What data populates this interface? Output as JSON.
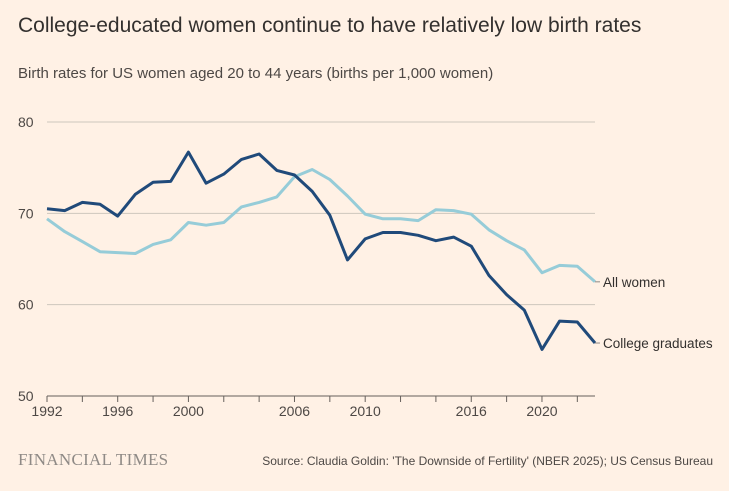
{
  "title": "College-educated women continue to have relatively low birth rates",
  "subtitle": "Birth rates for US women aged 20 to 44 years (births per 1,000 women)",
  "brand": "FINANCIAL TIMES",
  "source": "Source: Claudia Goldin: 'The Downside of Fertility' (NBER 2025); US Census Bureau",
  "chart_data": {
    "type": "line",
    "title": "College-educated women continue to have relatively low birth rates",
    "subtitle": "Birth rates for US women aged 20 to 44 years (births per 1,000 women)",
    "xlim": [
      1992,
      2023
    ],
    "ylim": [
      50,
      80
    ],
    "yticks": [
      50,
      60,
      70,
      80
    ],
    "xticks": [
      1992,
      1996,
      2000,
      2006,
      2010,
      2016,
      2020
    ],
    "grid": true,
    "x": [
      1992,
      1993,
      1994,
      1995,
      1996,
      1997,
      1998,
      1999,
      2000,
      2001,
      2002,
      2003,
      2004,
      2005,
      2006,
      2007,
      2008,
      2009,
      2010,
      2011,
      2012,
      2013,
      2014,
      2015,
      2016,
      2017,
      2018,
      2019,
      2020,
      2021,
      2022,
      2023
    ],
    "series": [
      {
        "name": "All women",
        "color": "#96CCD8",
        "values": [
          69.4,
          68.0,
          66.9,
          65.8,
          65.7,
          65.6,
          66.6,
          67.1,
          69.0,
          68.7,
          69.0,
          70.7,
          71.2,
          71.8,
          74.0,
          74.8,
          73.7,
          71.9,
          69.9,
          69.4,
          69.4,
          69.2,
          70.4,
          70.3,
          69.9,
          68.2,
          67.0,
          66.0,
          63.5,
          64.3,
          64.2,
          62.5
        ]
      },
      {
        "name": "College graduates",
        "color": "#204A7A",
        "values": [
          70.5,
          70.3,
          71.2,
          71.0,
          69.7,
          72.1,
          73.4,
          73.5,
          76.7,
          73.3,
          74.3,
          75.9,
          76.5,
          74.7,
          74.2,
          72.4,
          69.8,
          64.9,
          67.2,
          67.9,
          67.9,
          67.6,
          67.0,
          67.4,
          66.4,
          63.2,
          61.1,
          59.4,
          55.1,
          58.2,
          58.1,
          55.8
        ]
      }
    ]
  }
}
